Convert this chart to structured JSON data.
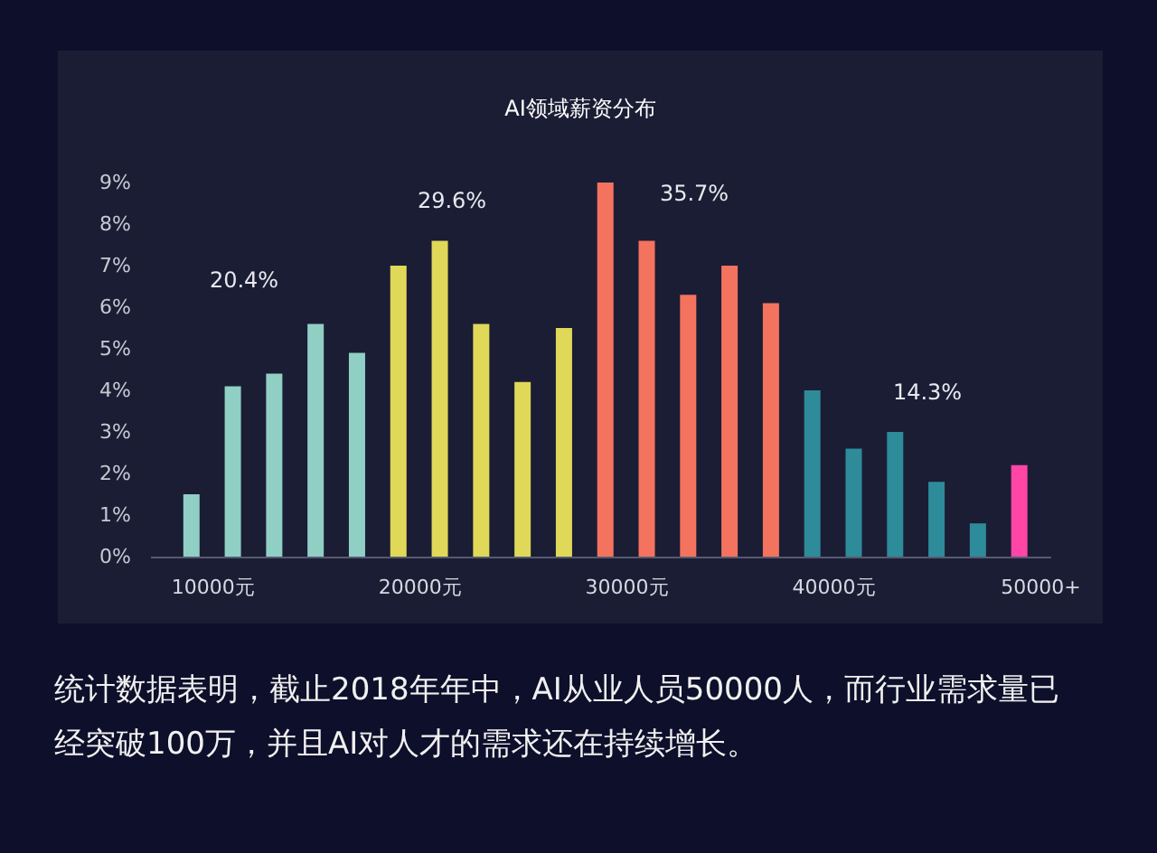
{
  "chart_data": {
    "type": "bar",
    "title": "AI领域薪资分布",
    "x": [
      9000,
      11000,
      13000,
      15000,
      17000,
      19000,
      21000,
      23000,
      25000,
      27000,
      29000,
      31000,
      33000,
      35000,
      37000,
      39000,
      41000,
      43000,
      45000,
      47000,
      49000
    ],
    "values": [
      1.5,
      4.1,
      4.4,
      5.6,
      4.9,
      7.0,
      7.6,
      5.6,
      4.2,
      5.5,
      9.0,
      7.6,
      6.3,
      7.0,
      6.1,
      4.0,
      2.6,
      3.0,
      1.8,
      0.8,
      2.2
    ],
    "colors": [
      "#90cfc4",
      "#90cfc4",
      "#90cfc4",
      "#90cfc4",
      "#90cfc4",
      "#e0d858",
      "#e0d858",
      "#e0d858",
      "#e0d858",
      "#e0d858",
      "#f4735f",
      "#f4735f",
      "#f4735f",
      "#f4735f",
      "#f4735f",
      "#2e8b9a",
      "#2e8b9a",
      "#2e8b9a",
      "#2e8b9a",
      "#2e8b9a",
      "#ff45a5"
    ],
    "xlim": [
      7000,
      50500
    ],
    "xticks": [
      {
        "value": 10000,
        "label": "10000元"
      },
      {
        "value": 20000,
        "label": "20000元"
      },
      {
        "value": 30000,
        "label": "30000元"
      },
      {
        "value": 40000,
        "label": "40000元"
      },
      {
        "value": 50000,
        "label": "50000+"
      }
    ],
    "ylim": [
      0,
      9
    ],
    "yticks": [
      {
        "value": 0,
        "label": "0%"
      },
      {
        "value": 1,
        "label": "1%"
      },
      {
        "value": 2,
        "label": "2%"
      },
      {
        "value": 3,
        "label": "3%"
      },
      {
        "value": 4,
        "label": "4%"
      },
      {
        "value": 5,
        "label": "5%"
      },
      {
        "value": 6,
        "label": "6%"
      },
      {
        "value": 7,
        "label": "7%"
      },
      {
        "value": 8,
        "label": "8%"
      },
      {
        "value": 9,
        "label": "9%"
      }
    ],
    "annotations": [
      "20.4%",
      "29.6%",
      "35.7%",
      "14.3%",
      "统计数据表明，截止2018年年中，AI从业人员50000人，而行业需求量已经突破100万，并且AI对人才的需求还在持续增长。"
    ]
  }
}
